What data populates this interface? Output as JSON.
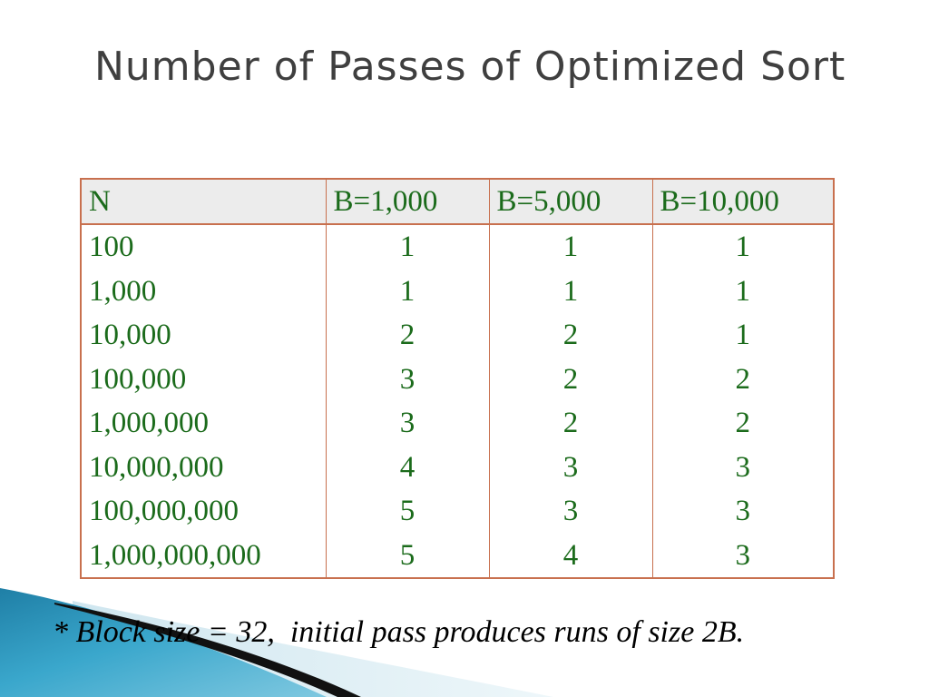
{
  "slide": {
    "title": "Number of Passes of Optimized Sort",
    "footnote": "* Block size = 32,  initial pass produces runs of size 2B."
  },
  "table": {
    "headers": [
      "N",
      "B=1,000",
      "B=5,000",
      "B=10,000"
    ],
    "rows": [
      [
        "100",
        "1",
        "1",
        "1"
      ],
      [
        "1,000",
        "1",
        "1",
        "1"
      ],
      [
        "10,000",
        "2",
        "2",
        "1"
      ],
      [
        "100,000",
        "3",
        "2",
        "2"
      ],
      [
        "1,000,000",
        "3",
        "2",
        "2"
      ],
      [
        "10,000,000",
        "4",
        "3",
        "3"
      ],
      [
        "100,000,000",
        "5",
        "3",
        "3"
      ],
      [
        "1,000,000,000",
        "5",
        "4",
        "3"
      ]
    ]
  },
  "colors": {
    "title": "#3f3f3f",
    "table_text": "#1b6b1b",
    "table_border": "#c8704e",
    "header_fill": "#ececec",
    "decoration_teal": "#2a8fb4"
  }
}
